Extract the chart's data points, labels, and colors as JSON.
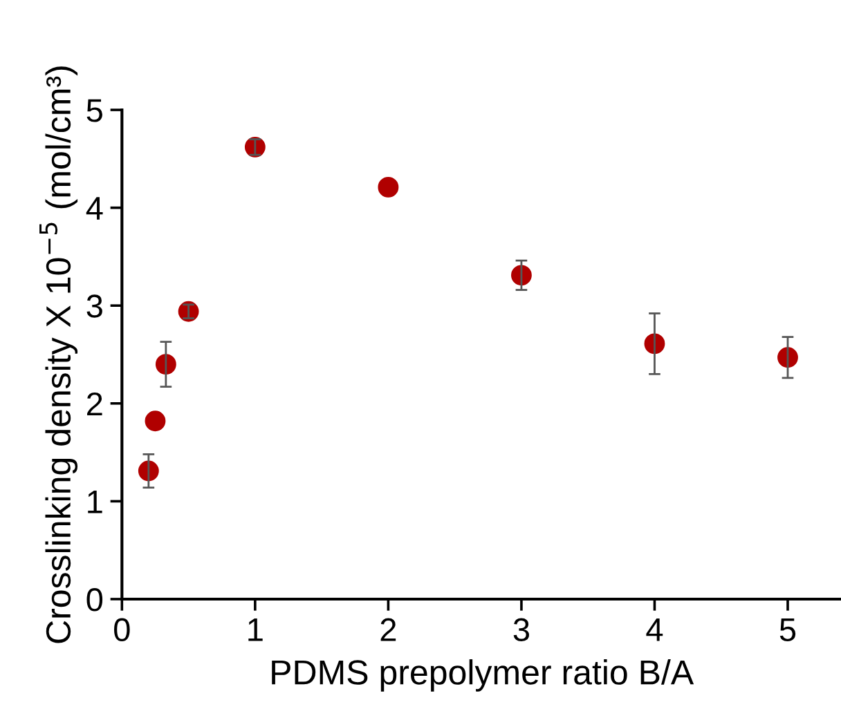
{
  "chart_data": {
    "type": "scatter",
    "xlabel": "PDMS prepolymer ratio B/A",
    "ylabel": "Crosslinking density X 10$^{−5}$ (mol/cm³)",
    "x": [
      0.2,
      0.25,
      0.33,
      0.5,
      1,
      2,
      3,
      4,
      5
    ],
    "values": [
      1.31,
      1.82,
      2.4,
      2.94,
      4.62,
      4.21,
      3.31,
      2.61,
      2.47
    ],
    "errors": [
      0.17,
      null,
      0.23,
      0.07,
      0.08,
      null,
      0.15,
      0.31,
      0.21
    ],
    "color": "#b00000",
    "marker": "circle",
    "xlim": [
      0,
      5.4
    ],
    "xticks": [
      0,
      1,
      2,
      3,
      4,
      5
    ],
    "ylim": [
      0,
      5
    ],
    "yticks": [
      0,
      1,
      2,
      3,
      4,
      5
    ],
    "grid": false
  }
}
